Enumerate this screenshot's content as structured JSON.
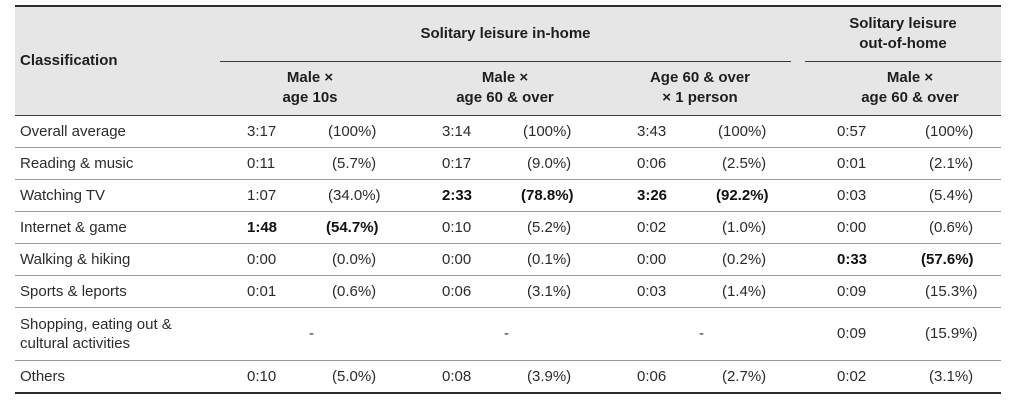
{
  "header": {
    "classification": "Classification",
    "group_in_home": "Solitary leisure in-home",
    "group_out_home_line1": "Solitary leisure",
    "group_out_home_line2": "out-of-home",
    "col1_line1": "Male ×",
    "col1_line2": "age 10s",
    "col2_line1": "Male ×",
    "col2_line2": "age 60 & over",
    "col3_line1": "Age 60 & over",
    "col3_line2": "× 1 person",
    "col4_line1": "Male ×",
    "col4_line2": "age 60 & over"
  },
  "rows": [
    {
      "label": "Overall average",
      "c1t": "3:17",
      "c1p": "(100%)",
      "c2t": "3:14",
      "c2p": "(100%)",
      "c3t": "3:43",
      "c3p": "(100%)",
      "c4t": "0:57",
      "c4p": "(100%)"
    },
    {
      "label": "Reading & music",
      "c1t": "0:11",
      "c1p": "(5.7%)",
      "c2t": "0:17",
      "c2p": "(9.0%)",
      "c3t": "0:06",
      "c3p": "(2.5%)",
      "c4t": "0:01",
      "c4p": "(2.1%)"
    },
    {
      "label": "Watching TV",
      "c1t": "1:07",
      "c1p": "(34.0%)",
      "c2t": "2:33",
      "c2p": "(78.8%)",
      "c3t": "3:26",
      "c3p": "(92.2%)",
      "c4t": "0:03",
      "c4p": "(5.4%)"
    },
    {
      "label": "Internet & game",
      "c1t": "1:48",
      "c1p": "(54.7%)",
      "c2t": "0:10",
      "c2p": "(5.2%)",
      "c3t": "0:02",
      "c3p": "(1.0%)",
      "c4t": "0:00",
      "c4p": "(0.6%)"
    },
    {
      "label": "Walking & hiking",
      "c1t": "0:00",
      "c1p": "(0.0%)",
      "c2t": "0:00",
      "c2p": "(0.1%)",
      "c3t": "0:00",
      "c3p": "(0.2%)",
      "c4t": "0:33",
      "c4p": "(57.6%)"
    },
    {
      "label": "Sports & leports",
      "c1t": "0:01",
      "c1p": "(0.6%)",
      "c2t": "0:06",
      "c2p": "(3.1%)",
      "c3t": "0:03",
      "c3p": "(1.4%)",
      "c4t": "0:09",
      "c4p": "(15.3%)"
    },
    {
      "label_line1": "Shopping, eating out &",
      "label_line2": "cultural activities",
      "c1": "-",
      "c2": "-",
      "c3": "-",
      "c4t": "0:09",
      "c4p": "(15.9%)"
    },
    {
      "label": "Others",
      "c1t": "0:10",
      "c1p": "(5.0%)",
      "c2t": "0:08",
      "c2p": "(3.9%)",
      "c3t": "0:06",
      "c3p": "(2.7%)",
      "c4t": "0:02",
      "c4p": "(3.1%)"
    }
  ]
}
